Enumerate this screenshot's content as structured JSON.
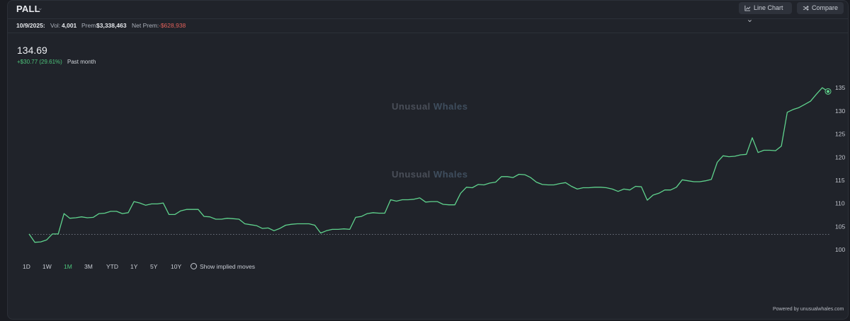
{
  "header": {
    "ticker": "PALL",
    "line_chart_label": "Line Chart",
    "compare_label": "Compare"
  },
  "stats": {
    "date": "10/9/2025:",
    "vol_label": "Vol:",
    "vol_value": "4,001",
    "prem_label": "Prem:",
    "prem_value": "$3,338,463",
    "net_prem_label": "Net Prem:",
    "net_prem_value": "-$628,938"
  },
  "quote": {
    "price": "134.69",
    "change": "+$30.77 (29.61%)",
    "period": "Past month"
  },
  "watermark": {
    "part1": "Unusual",
    "part2": "Whales"
  },
  "ranges": [
    "1D",
    "1W",
    "1M",
    "3M",
    "YTD",
    "1Y",
    "5Y",
    "10Y"
  ],
  "active_range": "1M",
  "implied_moves_label": "Show implied moves",
  "powered_by": "Powered by unusualwhales.com",
  "colors": {
    "line": "#5fd38d",
    "background": "#20232a",
    "negative": "#e0605a",
    "positive": "#4cc47a"
  },
  "chart_data": {
    "type": "line",
    "y_ticks": [
      100,
      105,
      110,
      115,
      120,
      125,
      130,
      135
    ],
    "ylim": [
      98.5,
      137
    ],
    "baseline": 103.3,
    "values": [
      103.4,
      101.6,
      101.7,
      102.1,
      103.4,
      103.4,
      107.8,
      106.8,
      106.9,
      107.1,
      106.9,
      107.0,
      107.8,
      107.9,
      108.3,
      108.3,
      107.8,
      108.0,
      110.4,
      110.1,
      109.6,
      109.9,
      109.9,
      110.1,
      107.6,
      107.6,
      108.4,
      108.7,
      108.7,
      108.7,
      107.2,
      107.1,
      106.6,
      106.6,
      106.8,
      106.7,
      106.6,
      105.6,
      105.4,
      105.2,
      104.6,
      104.7,
      104.1,
      104.6,
      105.3,
      105.5,
      105.6,
      105.6,
      105.6,
      105.3,
      103.6,
      104.1,
      104.4,
      104.4,
      104.5,
      104.4,
      107.0,
      107.2,
      107.8,
      108.0,
      107.9,
      107.9,
      110.8,
      110.5,
      110.8,
      110.8,
      110.9,
      111.2,
      110.3,
      110.4,
      110.4,
      109.8,
      109.7,
      109.7,
      112.2,
      113.5,
      113.4,
      114.1,
      114.0,
      114.4,
      114.6,
      115.8,
      115.8,
      115.6,
      116.3,
      116.2,
      115.6,
      114.6,
      114.1,
      114.0,
      114.0,
      114.3,
      114.5,
      113.7,
      113.1,
      113.4,
      113.4,
      113.5,
      113.5,
      113.4,
      113.1,
      112.6,
      113.1,
      112.9,
      113.7,
      113.6,
      110.7,
      111.8,
      112.2,
      112.9,
      112.9,
      113.5,
      115.1,
      114.9,
      114.7,
      114.7,
      114.9,
      115.2,
      118.9,
      120.3,
      120.1,
      120.2,
      120.5,
      120.6,
      124.2,
      121.0,
      121.5,
      121.5,
      121.4,
      122.4,
      129.7,
      130.3,
      130.7,
      131.4,
      132.1,
      133.6,
      135.0,
      134.2
    ]
  }
}
